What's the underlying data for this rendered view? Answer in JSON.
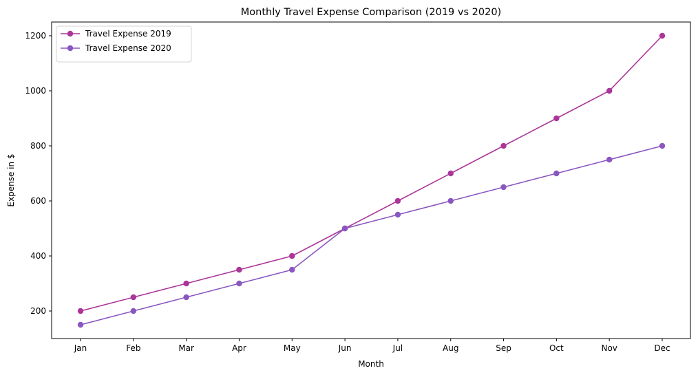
{
  "chart_data": {
    "type": "line",
    "title": "Monthly Travel Expense Comparison (2019 vs 2020)",
    "xlabel": "Month",
    "ylabel": "Expense in $",
    "categories": [
      "Jan",
      "Feb",
      "Mar",
      "Apr",
      "May",
      "Jun",
      "Jul",
      "Aug",
      "Sep",
      "Oct",
      "Nov",
      "Dec"
    ],
    "ylim": [
      100,
      1250
    ],
    "yticks": [
      200,
      400,
      600,
      800,
      1000,
      1200
    ],
    "grid": false,
    "legend_position": "top-left",
    "series": [
      {
        "name": "Travel Expense 2019",
        "color": "#ac3599",
        "values": [
          200,
          250,
          300,
          350,
          400,
          500,
          600,
          700,
          800,
          900,
          1000,
          1200
        ]
      },
      {
        "name": "Travel Expense 2020",
        "color": "#8a57c0",
        "values": [
          150,
          200,
          250,
          300,
          350,
          500,
          550,
          600,
          650,
          700,
          750,
          800
        ]
      }
    ]
  }
}
